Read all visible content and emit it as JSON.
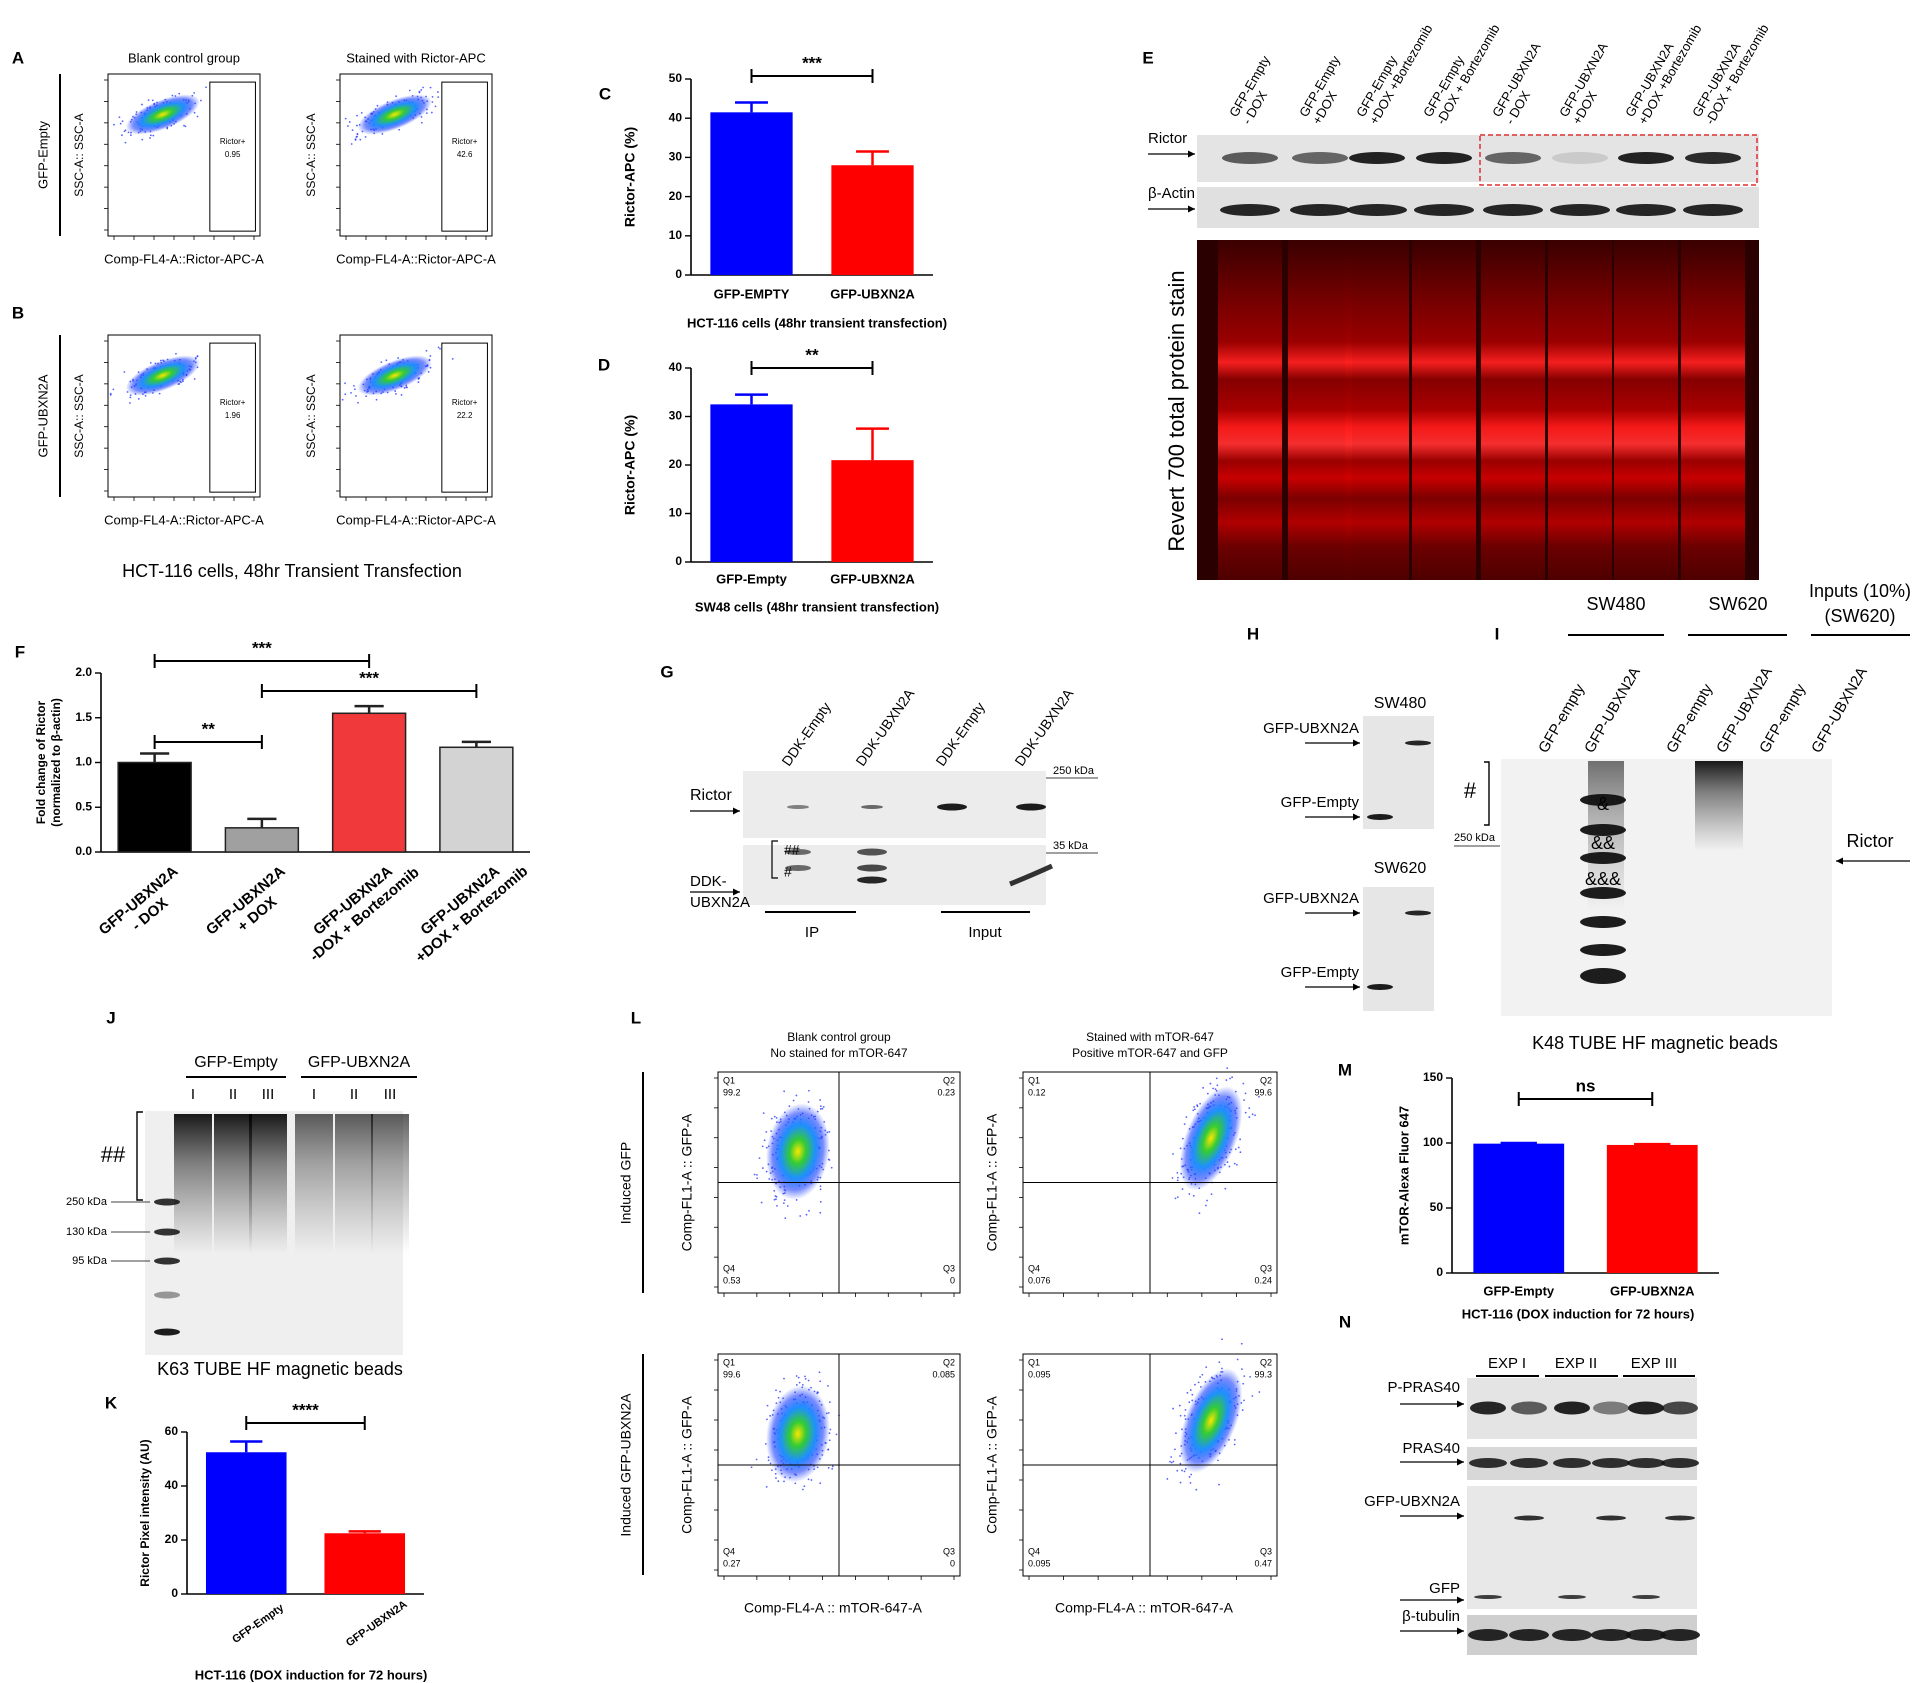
{
  "chart_data": [
    {
      "type": "bar",
      "panel": "C",
      "ylabel": "Rictor-APC (%)",
      "xlabel": "HCT-116 cells (48hr transient transfection)",
      "categories": [
        "GFP-EMPTY",
        "GFP-UBXN2A"
      ],
      "values": [
        41.5,
        28
      ],
      "errors": [
        2.5,
        3.5
      ],
      "colors": [
        "#0000ff",
        "#ff0000"
      ],
      "ylim": [
        0,
        50
      ],
      "yticks": [
        0,
        10,
        20,
        30,
        40,
        50
      ],
      "comparisons": [
        {
          "groups": [
            0,
            1
          ],
          "label": "***"
        }
      ]
    },
    {
      "type": "bar",
      "panel": "D",
      "ylabel": "Rictor-APC (%)",
      "xlabel": "SW48 cells (48hr transient transfection)",
      "categories": [
        "GFP-Empty",
        "GFP-UBXN2A"
      ],
      "values": [
        32.5,
        21
      ],
      "errors": [
        2,
        6.5
      ],
      "colors": [
        "#0000ff",
        "#ff0000"
      ],
      "ylim": [
        0,
        40
      ],
      "yticks": [
        0,
        10,
        20,
        30,
        40
      ],
      "comparisons": [
        {
          "groups": [
            0,
            1
          ],
          "label": "**"
        }
      ]
    },
    {
      "type": "bar",
      "panel": "F",
      "ylabel": [
        "Fold change of Rictor",
        "(normalized to β-actin)"
      ],
      "categories": [
        [
          "GFP-UBXN2A",
          "- DOX"
        ],
        [
          "GFP-UBXN2A",
          "+ DOX"
        ],
        [
          "GFP-UBXN2A",
          "-DOX + Bortezomib"
        ],
        [
          "GFP-UBXN2A",
          "+DOX + Bortezomib"
        ]
      ],
      "values": [
        1.0,
        0.27,
        1.55,
        1.17
      ],
      "errors": [
        0.1,
        0.1,
        0.08,
        0.06
      ],
      "colors": [
        "#000000",
        "#a0a0a0",
        "#f0393b",
        "#d3d3d3"
      ],
      "ylim": [
        0,
        2
      ],
      "yticks": [
        {
          "value": 0,
          "label": "0.0"
        },
        {
          "value": 0.5,
          "label": "0.5"
        },
        {
          "value": 1,
          "label": "1.0"
        },
        {
          "value": 1.5,
          "label": "1.5"
        },
        {
          "value": 2,
          "label": "2.0"
        }
      ],
      "comparisons": [
        {
          "groups": [
            0,
            2
          ],
          "label": "***"
        },
        {
          "groups": [
            0,
            1
          ],
          "label": "**"
        },
        {
          "groups": [
            1,
            3
          ],
          "label": "***"
        }
      ]
    },
    {
      "type": "bar",
      "panel": "K",
      "ylabel": "Rictor Pixel intensity (AU)",
      "xlabel": "HCT-116  (DOX induction for 72 hours)",
      "categories": [
        "GFP-Empty",
        "GFP-UBXN2A"
      ],
      "values": [
        52.5,
        22.5
      ],
      "errors": [
        4,
        0.7
      ],
      "colors": [
        "#0000ff",
        "#ff0000"
      ],
      "ylim": [
        0,
        60
      ],
      "yticks": [
        0,
        20,
        40,
        60
      ],
      "comparisons": [
        {
          "groups": [
            0,
            1
          ],
          "label": "****"
        }
      ]
    },
    {
      "type": "bar",
      "panel": "M",
      "ylabel": "mTOR-Alexa Fluor 647",
      "xlabel": "HCT-116  (DOX induction for 72 hours)",
      "categories": [
        "GFP-Empty",
        "GFP-UBXN2A"
      ],
      "values": [
        99.5,
        98.5
      ],
      "errors": [
        0.5,
        0.6
      ],
      "colors": [
        "#0000ff",
        "#ff0000"
      ],
      "ylim": [
        0,
        150
      ],
      "yticks": [
        0,
        50,
        100,
        150
      ],
      "comparisons": [
        {
          "groups": [
            0,
            1
          ],
          "label": "ns"
        }
      ]
    }
  ],
  "panel_ab": {
    "labels": [
      "A",
      "B"
    ],
    "columns": [
      "Blank control group",
      "Stained with Rictor-APC"
    ],
    "rows": [
      "GFP-Empty",
      "GFP-UBXN2A"
    ],
    "y_axis": "SSC-A:: SSC-A",
    "x_axis": "Comp-FL4-A::Rictor-APC-A",
    "gate": "Rictor+",
    "gate_values": [
      [
        0.95,
        42.6
      ],
      [
        1.96,
        22.2
      ]
    ],
    "caption": "HCT-116 cells, 48hr Transient Transfection"
  },
  "panel_e": {
    "label": "E",
    "lanes": [
      [
        "GFP-Empty",
        "- DOX"
      ],
      [
        "GFP-Empty",
        "+DOX"
      ],
      [
        "GFP-Empty",
        "+DOX +Bortezomib"
      ],
      [
        "GFP-Empty",
        "-DOX + Bortezomib"
      ],
      [
        "GFP-UBXN2A",
        "- DOX"
      ],
      [
        "GFP-UBXN2A",
        "+DOX"
      ],
      [
        "GFP-UBXN2A",
        "+DOX +Bortezomib"
      ],
      [
        "GFP-UBXN2A",
        "-DOX + Bortezomib"
      ]
    ],
    "rows": [
      "Rictor",
      "β-Actin"
    ],
    "stain": "Revert 700 total protein stain"
  },
  "panel_g": {
    "label": "G",
    "lanes": [
      "DDK-Empty",
      "DDK-UBXN2A",
      "DDK-Empty",
      "DDK-UBXN2A"
    ],
    "target": "Rictor",
    "bait": [
      "DDK-",
      "UBXN2A"
    ],
    "marks": [
      "##",
      "#"
    ],
    "markers": [
      "250 kDa",
      "35 kDa"
    ],
    "groups": [
      "IP",
      "Input"
    ]
  },
  "panel_h": {
    "label": "H",
    "blots": [
      {
        "title": "SW480",
        "bands": [
          "GFP-UBXN2A",
          "GFP-Empty"
        ]
      },
      {
        "title": "SW620",
        "bands": [
          "GFP-UBXN2A",
          "GFP-Empty"
        ]
      }
    ]
  },
  "panel_i": {
    "label": "I",
    "groups": [
      [
        "SW480"
      ],
      [
        "SW620"
      ],
      [
        "Inputs (10%)",
        "(SW620)"
      ]
    ],
    "lanes": [
      "GFP-empty",
      "GFP-UBXN2A",
      "GFP-empty",
      "GFP-UBXN2A",
      "GFP-empty",
      "GFP-UBXN2A"
    ],
    "mark": "#",
    "marker": "250 kDa",
    "ladder": [
      "&",
      "&&",
      "&&&"
    ],
    "target": "Rictor",
    "caption": "K48 TUBE HF magnetic beads"
  },
  "panel_j": {
    "label": "J",
    "groups": [
      "GFP-Empty",
      "GFP-UBXN2A"
    ],
    "replicates": [
      "I",
      "II",
      "III"
    ],
    "mark": "##",
    "markers": [
      "250 kDa",
      "130 kDa",
      "95 kDa"
    ],
    "caption": "K63 TUBE HF magnetic beads"
  },
  "panel_l": {
    "label": "L",
    "columns": [
      [
        "Blank control group",
        "No stained for mTOR-647"
      ],
      [
        "Stained with mTOR-647",
        "Positive mTOR-647  and GFP"
      ]
    ],
    "rows": [
      "Induced GFP",
      "Induced GFP-UBXN2A"
    ],
    "y_axis": "Comp-FL1-A :: GFP-A",
    "x_axis": "Comp-FL4-A :: mTOR-647-A",
    "quadrant_names": [
      "Q1",
      "Q2",
      "Q3",
      "Q4"
    ],
    "quadrants": [
      [
        99.2,
        0.23,
        0,
        0.53
      ],
      [
        0.12,
        99.6,
        0.24,
        0.076
      ],
      [
        99.6,
        0.085,
        0,
        0.27
      ],
      [
        0.095,
        99.3,
        0.47,
        0.095
      ]
    ]
  },
  "panel_n": {
    "label": "N",
    "experiments": [
      "EXP I",
      "EXP II",
      "EXP III"
    ],
    "rows": [
      "P-PRAS40",
      "PRAS40",
      "GFP-UBXN2A",
      "GFP",
      "β-tubulin"
    ]
  }
}
